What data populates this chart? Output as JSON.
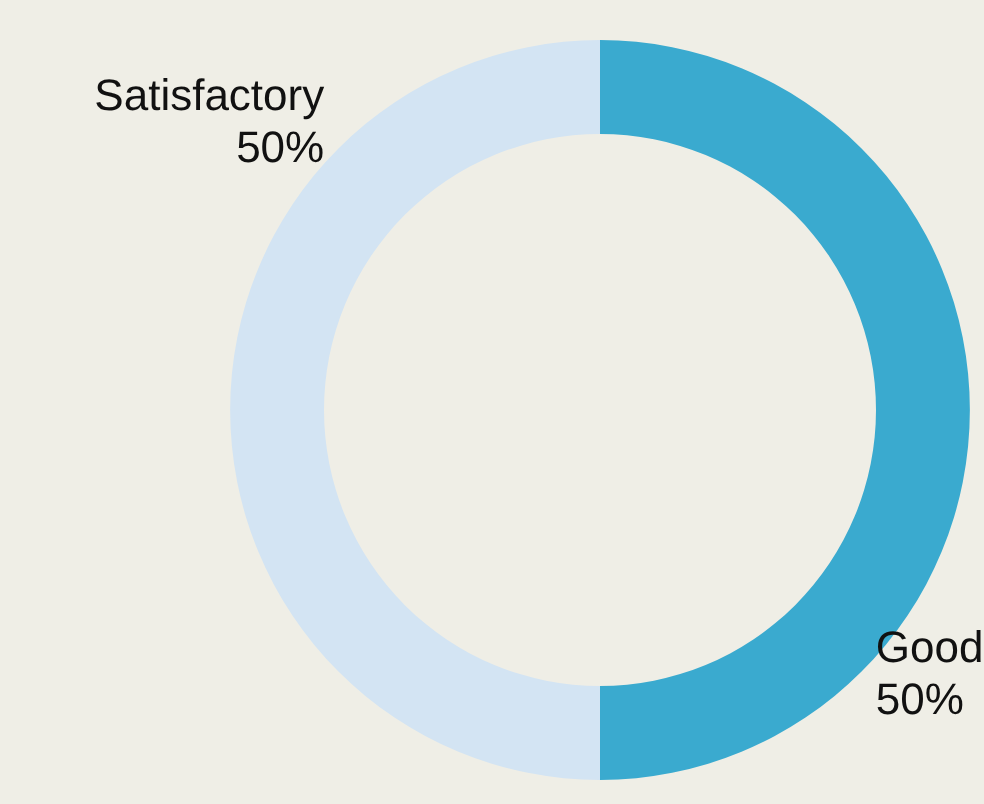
{
  "chart_data": {
    "type": "donut",
    "categories": [
      "Good",
      "Satisfactory"
    ],
    "values": [
      50,
      50
    ],
    "colors": [
      "#3aaacf",
      "#d3e4f3"
    ],
    "value_labels": [
      "50%",
      "50%"
    ]
  }
}
